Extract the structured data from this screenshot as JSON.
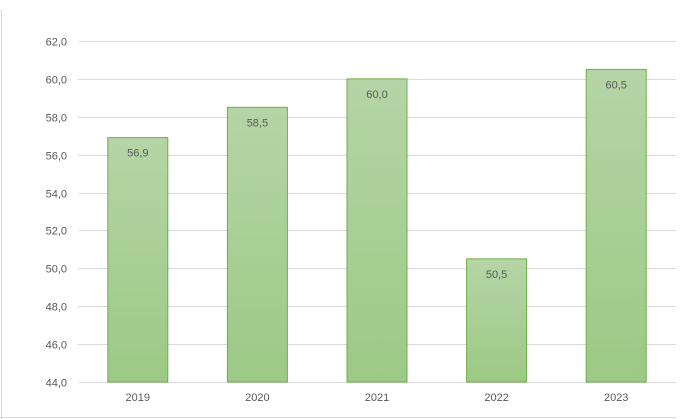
{
  "chart_data": {
    "type": "bar",
    "categories": [
      "2019",
      "2020",
      "2021",
      "2022",
      "2023"
    ],
    "values": [
      56.9,
      58.5,
      60.0,
      50.5,
      60.5
    ],
    "data_labels": [
      "56,9",
      "58,5",
      "60,0",
      "50,5",
      "60,5"
    ],
    "title": "",
    "xlabel": "",
    "ylabel": "",
    "ylim": [
      44,
      62
    ],
    "yticks": [
      44,
      46,
      48,
      50,
      52,
      54,
      56,
      58,
      60,
      62
    ],
    "ytick_labels": [
      "44,0",
      "46,0",
      "48,0",
      "50,0",
      "52,0",
      "54,0",
      "56,0",
      "58,0",
      "60,0",
      "62,0"
    ],
    "grid": true,
    "legend": "none",
    "colors": {
      "bar_top": "#b5d5a6",
      "bar_bottom": "#9cc985",
      "bar_border": "#70ad47",
      "grid": "#d9d9d9",
      "text": "#595959"
    }
  }
}
